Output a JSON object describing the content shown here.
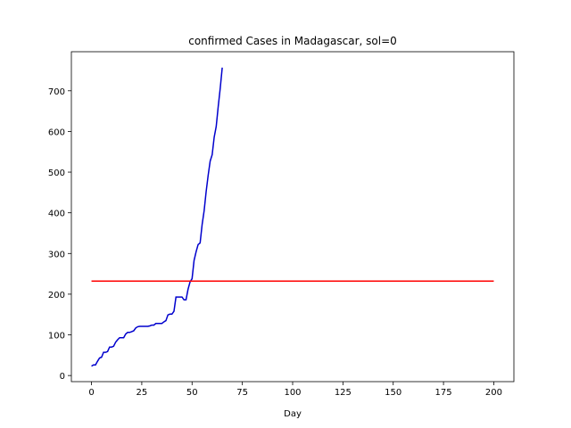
{
  "chart_data": {
    "type": "line",
    "title": "confirmed Cases in Madagascar, sol=0",
    "x_label": "Day",
    "xlim": [
      -10,
      210
    ],
    "xticks": [
      0,
      25,
      50,
      75,
      100,
      125,
      150,
      175,
      200
    ],
    "ylim": [
      -15,
      796
    ],
    "yticks": [
      0,
      100,
      200,
      300,
      400,
      500,
      600,
      700
    ],
    "series": [
      {
        "color": "#0000cd",
        "x": [
          0,
          1,
          2,
          3,
          4,
          5,
          6,
          7,
          8,
          9,
          10,
          11,
          12,
          13,
          14,
          15,
          16,
          17,
          18,
          19,
          20,
          21,
          22,
          23,
          24,
          25,
          26,
          27,
          28,
          29,
          30,
          31,
          32,
          33,
          34,
          35,
          36,
          37,
          38,
          39,
          40,
          41,
          42,
          43,
          44,
          45,
          46,
          47,
          48,
          49,
          50,
          51,
          52,
          53,
          54,
          55,
          56,
          57,
          58,
          59,
          60,
          61,
          62,
          63,
          64,
          65
        ],
        "values": [
          23,
          26,
          26,
          35,
          43,
          45,
          57,
          57,
          59,
          70,
          70,
          72,
          82,
          88,
          93,
          93,
          93,
          102,
          106,
          106,
          108,
          110,
          117,
          120,
          121,
          121,
          121,
          121,
          121,
          122,
          124,
          124,
          128,
          128,
          128,
          128,
          132,
          135,
          149,
          151,
          151,
          158,
          193,
          193,
          193,
          193,
          186,
          186,
          212,
          230,
          238,
          283,
          304,
          322,
          326,
          371,
          405,
          452,
          492,
          527,
          543,
          586,
          612,
          661,
          706,
          757
        ]
      },
      {
        "color": "#ff0000",
        "x": [
          0,
          200
        ],
        "values": [
          232,
          232
        ]
      }
    ]
  }
}
